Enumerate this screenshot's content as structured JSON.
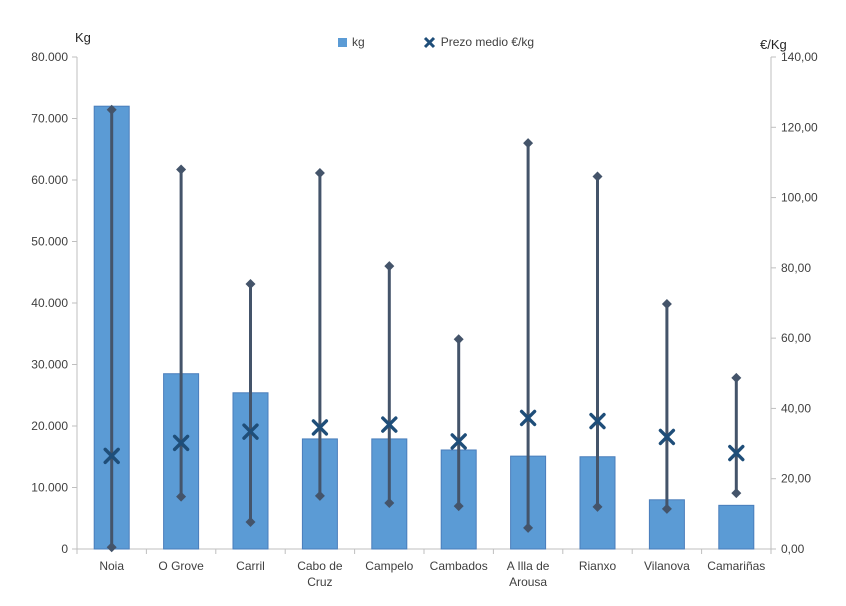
{
  "chart_data": {
    "type": "combo",
    "subtypes": [
      "bar",
      "scatter",
      "high-low-lines"
    ],
    "title": "",
    "categories": [
      "Noia",
      "O Grove",
      "Carril",
      "Cabo de\nCruz",
      "Campelo",
      "Cambados",
      "A Illa de\nArousa",
      "Rianxo",
      "Vilanova",
      "Camariñas"
    ],
    "left_axis": {
      "title": "Kg",
      "min": 0,
      "max": 80000,
      "step": 10000,
      "tick_labels": [
        "80.000",
        "70.000",
        "60.000",
        "50.000",
        "40.000",
        "30.000",
        "20.000",
        "10.000",
        "0"
      ]
    },
    "right_axis": {
      "title": "€/Kg",
      "min": 0,
      "max": 140,
      "step": 20,
      "tick_labels": [
        "140,00",
        "120,00",
        "100,00",
        "80,00",
        "60,00",
        "40,00",
        "20,00",
        "0,00"
      ]
    },
    "legend": [
      {
        "label": "kg",
        "marker": "square",
        "color": "#5B9BD5"
      },
      {
        "label": "Prezo medio €/kg",
        "marker": "x",
        "color": "#1F4E79"
      }
    ],
    "legend_position": "top",
    "grid": false,
    "colors": {
      "bar_fill": "#5B9BD5",
      "bar_border": "#4A7EBB",
      "hilo_line": "#44546A",
      "x_marker": "#1F4E79",
      "axis_line": "#BFBFBF",
      "text": "#404040"
    },
    "series": [
      {
        "name": "kg",
        "type": "bar",
        "axis": "left",
        "values": [
          72000,
          28500,
          25400,
          17900,
          17900,
          16100,
          15100,
          15000,
          8000,
          7100
        ]
      },
      {
        "name": "Prezo medio €/kg",
        "type": "scatter_x",
        "axis": "right",
        "values": [
          26.5,
          30.2,
          33.4,
          34.6,
          35.4,
          30.6,
          37.3,
          36.4,
          31.9,
          27.3
        ]
      },
      {
        "name": "price-range",
        "type": "hilo",
        "axis": "right",
        "high": [
          125.0,
          108.0,
          75.4,
          107.0,
          80.5,
          59.7,
          115.5,
          106.0,
          69.7,
          48.7
        ],
        "low": [
          0.5,
          14.9,
          7.7,
          15.1,
          13.1,
          12.2,
          6.0,
          12.0,
          11.4,
          15.9
        ]
      }
    ]
  }
}
